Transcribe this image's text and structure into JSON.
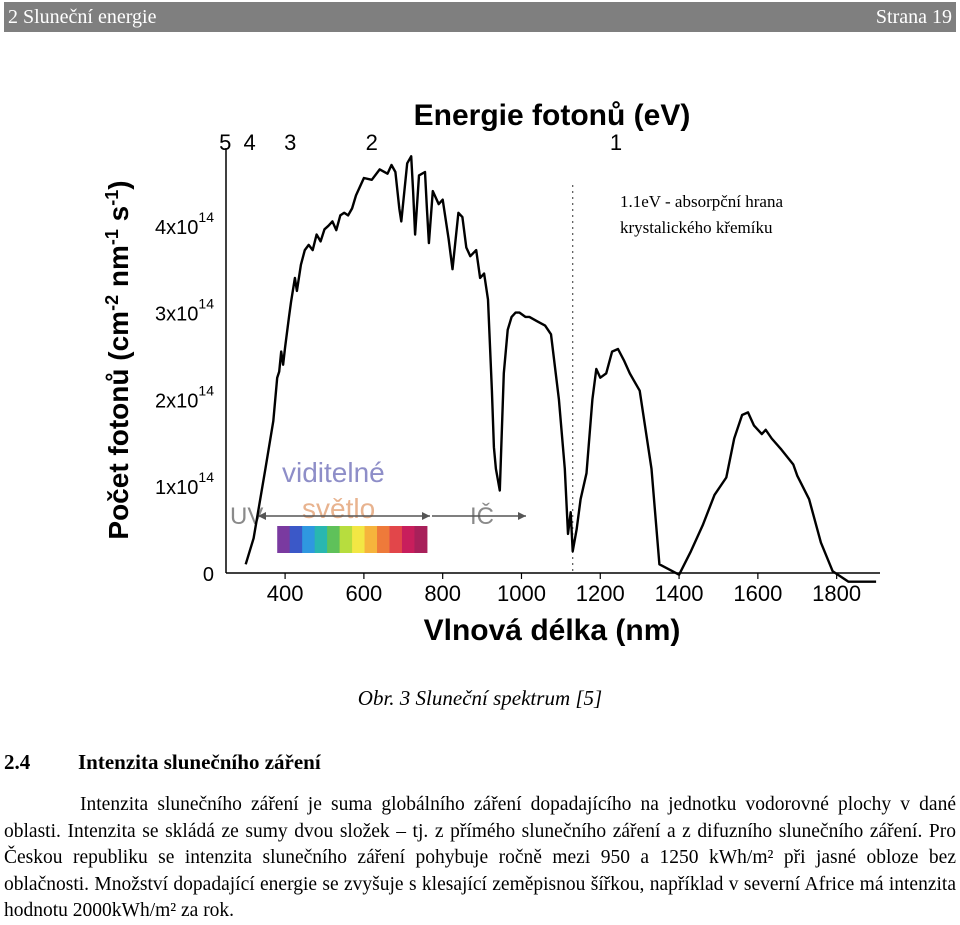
{
  "header": {
    "left": "2 Sluneční energie",
    "right": "Strana 19"
  },
  "chart_data": {
    "type": "line",
    "xlabel": "Vlnová délka (nm)",
    "ylabel": "Počet fotonů (cm-2 nm-1 s-1)",
    "ylabel_parts": [
      "Počet fotonů (cm",
      "-2",
      " nm",
      "-1",
      " s",
      "-1",
      ")"
    ],
    "top_axis_label": "Energie fotonů (eV)",
    "top_ticks": [
      {
        "label": "5",
        "x": 248
      },
      {
        "label": "4",
        "x": 310
      },
      {
        "label": "3",
        "x": 413
      },
      {
        "label": "2",
        "x": 620
      },
      {
        "label": "1",
        "x": 1240
      }
    ],
    "xticks": [
      400,
      600,
      800,
      1000,
      1200,
      1400,
      1600,
      1800
    ],
    "xlim": [
      250,
      1910
    ],
    "yticks": [
      {
        "value": 0,
        "base": "0",
        "exp": ""
      },
      {
        "value": 1,
        "base": "1x10",
        "exp": "14"
      },
      {
        "value": 2,
        "base": "2x10",
        "exp": "14"
      },
      {
        "value": 3,
        "base": "3x10",
        "exp": "14"
      },
      {
        "value": 4,
        "base": "4x10",
        "exp": "14"
      }
    ],
    "ylim": [
      0,
      4.85
    ],
    "y_unit": "1x10^14",
    "annotation": [
      "1.1eV - absorpční hrana",
      "krystalického křemíku"
    ],
    "absorption_edge_nm": 1130,
    "bands": {
      "uv": "UV",
      "visible": [
        "viditelné",
        "světlo"
      ],
      "ir": "IČ"
    },
    "visible_range_nm": [
      380,
      760
    ],
    "spectrum_colors": [
      "#7a3aa0",
      "#3b58c8",
      "#2f98e0",
      "#29b7b0",
      "#5fc15a",
      "#b7dd3e",
      "#f3e744",
      "#f6b43c",
      "#ee7a3a",
      "#e2464a",
      "#c81e5c",
      "#a8205a"
    ],
    "line_color": "#000000",
    "series": [
      {
        "values": [
          [
            300,
            0.1
          ],
          [
            320,
            0.4
          ],
          [
            350,
            1.2
          ],
          [
            370,
            1.75
          ],
          [
            380,
            2.25
          ],
          [
            385,
            2.32
          ],
          [
            390,
            2.55
          ],
          [
            395,
            2.4
          ],
          [
            400,
            2.6
          ],
          [
            410,
            2.95
          ],
          [
            415,
            3.12
          ],
          [
            425,
            3.4
          ],
          [
            430,
            3.25
          ],
          [
            440,
            3.55
          ],
          [
            450,
            3.72
          ],
          [
            460,
            3.78
          ],
          [
            470,
            3.72
          ],
          [
            480,
            3.9
          ],
          [
            490,
            3.82
          ],
          [
            500,
            3.96
          ],
          [
            510,
            4.0
          ],
          [
            520,
            4.05
          ],
          [
            530,
            3.95
          ],
          [
            540,
            4.12
          ],
          [
            550,
            4.15
          ],
          [
            560,
            4.12
          ],
          [
            570,
            4.2
          ],
          [
            580,
            4.35
          ],
          [
            600,
            4.55
          ],
          [
            620,
            4.53
          ],
          [
            640,
            4.65
          ],
          [
            660,
            4.6
          ],
          [
            670,
            4.7
          ],
          [
            680,
            4.62
          ],
          [
            690,
            4.2
          ],
          [
            695,
            4.05
          ],
          [
            710,
            4.72
          ],
          [
            720,
            4.8
          ],
          [
            725,
            4.4
          ],
          [
            730,
            3.9
          ],
          [
            740,
            4.58
          ],
          [
            755,
            4.62
          ],
          [
            760,
            4.2
          ],
          [
            765,
            3.8
          ],
          [
            775,
            4.4
          ],
          [
            790,
            4.25
          ],
          [
            800,
            4.3
          ],
          [
            815,
            3.85
          ],
          [
            825,
            3.5
          ],
          [
            840,
            4.15
          ],
          [
            850,
            4.1
          ],
          [
            860,
            3.75
          ],
          [
            870,
            3.65
          ],
          [
            885,
            3.72
          ],
          [
            895,
            3.4
          ],
          [
            905,
            3.45
          ],
          [
            915,
            3.15
          ],
          [
            925,
            2.1
          ],
          [
            930,
            1.45
          ],
          [
            935,
            1.2
          ],
          [
            945,
            0.95
          ],
          [
            955,
            2.3
          ],
          [
            965,
            2.8
          ],
          [
            975,
            2.95
          ],
          [
            985,
            3.0
          ],
          [
            995,
            3.0
          ],
          [
            1010,
            2.95
          ],
          [
            1020,
            2.95
          ],
          [
            1040,
            2.9
          ],
          [
            1060,
            2.85
          ],
          [
            1075,
            2.75
          ],
          [
            1095,
            2.0
          ],
          [
            1110,
            1.2
          ],
          [
            1118,
            0.45
          ],
          [
            1125,
            0.7
          ],
          [
            1130,
            0.25
          ],
          [
            1140,
            0.5
          ],
          [
            1150,
            0.85
          ],
          [
            1165,
            1.15
          ],
          [
            1180,
            2.0
          ],
          [
            1190,
            2.35
          ],
          [
            1200,
            2.25
          ],
          [
            1215,
            2.3
          ],
          [
            1230,
            2.55
          ],
          [
            1245,
            2.58
          ],
          [
            1260,
            2.45
          ],
          [
            1275,
            2.3
          ],
          [
            1300,
            2.1
          ],
          [
            1330,
            1.2
          ],
          [
            1350,
            0.1
          ],
          [
            1400,
            -0.02
          ],
          [
            1430,
            0.25
          ],
          [
            1460,
            0.55
          ],
          [
            1490,
            0.9
          ],
          [
            1520,
            1.1
          ],
          [
            1540,
            1.55
          ],
          [
            1560,
            1.82
          ],
          [
            1575,
            1.85
          ],
          [
            1590,
            1.7
          ],
          [
            1610,
            1.6
          ],
          [
            1620,
            1.65
          ],
          [
            1635,
            1.55
          ],
          [
            1660,
            1.42
          ],
          [
            1690,
            1.25
          ],
          [
            1700,
            1.12
          ],
          [
            1730,
            0.85
          ],
          [
            1760,
            0.35
          ],
          [
            1790,
            0.02
          ],
          [
            1830,
            -0.1
          ],
          [
            1900,
            -0.1
          ]
        ]
      }
    ]
  },
  "caption": "Obr. 3 Sluneční spektrum [5]",
  "section": {
    "number": "2.4",
    "title": "Intenzita slunečního záření"
  },
  "paragraph": "Intenzita slunečního záření je suma globálního záření dopadajícího na jednotku vodorovné plochy v dané oblasti. Intenzita se skládá ze sumy dvou složek – tj. z přímého slunečního záření a z difuzního slunečního záření. Pro Českou republiku se intenzita slunečního záření pohybuje ročně mezi 950 a 1250 kWh/m² při jasné obloze bez oblačnosti. Množství dopadající energie se zvyšuje s klesající zeměpisnou šířkou, například v severní Africe má intenzita hodnotu 2000kWh/m² za rok."
}
